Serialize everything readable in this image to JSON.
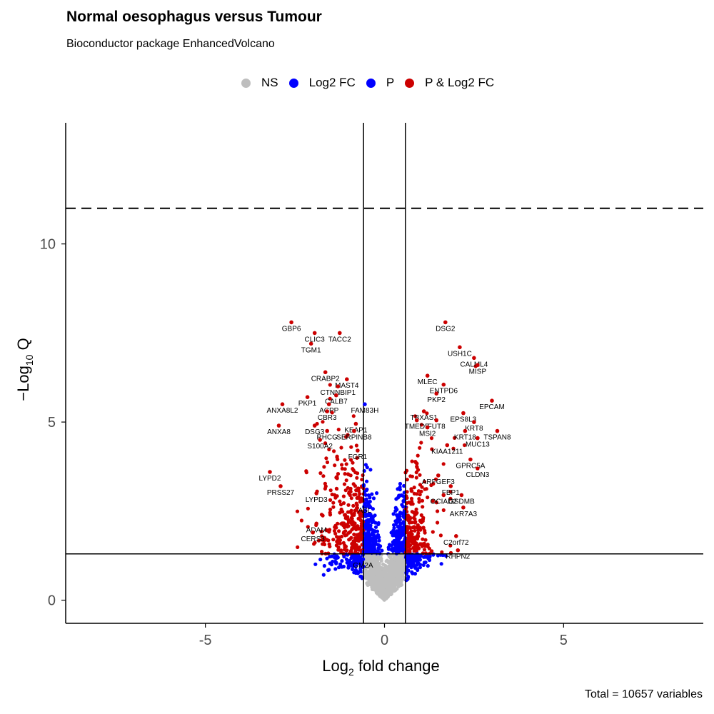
{
  "chart_data": {
    "type": "scatter",
    "title": "Normal oesophagus versus Tumour",
    "subtitle": "Bioconductor package EnhancedVolcano",
    "caption": "Total = 10657 variables",
    "xlabel_main": "Log",
    "xlabel_sub": "2",
    "xlabel_rest": " fold change",
    "ylabel_pre": "−Log",
    "ylabel_sub": "10",
    "ylabel_rest": " Q",
    "xlim": [
      -8.9,
      8.9
    ],
    "ylim": [
      -0.65,
      13.4
    ],
    "x_ticks": [
      -5,
      0,
      5
    ],
    "y_ticks": [
      0,
      5,
      10
    ],
    "x_tick_labels": [
      "-5",
      "0",
      "5"
    ],
    "y_tick_labels": [
      "0",
      "5",
      "10"
    ],
    "fc_cutoff": 0.585,
    "q_cutoff_line": 1.3,
    "dashed_line": 11.0,
    "legend_position": "top",
    "colors": {
      "ns": "#bebebe",
      "log2fc": "#0000ff",
      "p": "#0000ff",
      "both": "#cc0000"
    },
    "legend": [
      {
        "label": "NS",
        "color": "#bebebe"
      },
      {
        "label": "Log2 FC",
        "color": "#0000ff"
      },
      {
        "label": "P",
        "color": "#0000ff"
      },
      {
        "label": "P & Log2 FC",
        "color": "#cc0000"
      }
    ],
    "labeled_points": [
      {
        "label": "GBP6",
        "x": -2.6,
        "y": 7.8
      },
      {
        "label": "CLIC3",
        "x": -1.95,
        "y": 7.5
      },
      {
        "label": "TACC2",
        "x": -1.25,
        "y": 7.5
      },
      {
        "label": "TGM1",
        "x": -2.05,
        "y": 7.2
      },
      {
        "label": "CRABP2",
        "x": -1.65,
        "y": 6.4
      },
      {
        "label": "MAST4",
        "x": -1.05,
        "y": 6.2
      },
      {
        "label": "CTNNBIP1",
        "x": -1.3,
        "y": 6.0
      },
      {
        "label": "PKP1",
        "x": -2.15,
        "y": 5.7
      },
      {
        "label": "CALB7",
        "x": -1.35,
        "y": 5.75
      },
      {
        "label": "ANXA8L2",
        "x": -2.85,
        "y": 5.5
      },
      {
        "label": "ACPP",
        "x": -1.55,
        "y": 5.5
      },
      {
        "label": "FAM83H",
        "x": -0.55,
        "y": 5.5
      },
      {
        "label": "CBR3",
        "x": -1.6,
        "y": 5.3
      },
      {
        "label": "ANXA8",
        "x": -2.95,
        "y": 4.9
      },
      {
        "label": "DSG3",
        "x": -1.95,
        "y": 4.9
      },
      {
        "label": "KEAP1",
        "x": -0.8,
        "y": 4.95
      },
      {
        "label": "SERPINB8",
        "x": -0.85,
        "y": 4.75
      },
      {
        "label": "RHCG",
        "x": -1.6,
        "y": 4.75
      },
      {
        "label": "S100A2",
        "x": -1.8,
        "y": 4.5
      },
      {
        "label": "FGR1",
        "x": -0.75,
        "y": 4.2
      },
      {
        "label": "LYPD2",
        "x": -3.2,
        "y": 3.6
      },
      {
        "label": "PRSS27",
        "x": -2.9,
        "y": 3.2
      },
      {
        "label": "LYPD3",
        "x": -1.9,
        "y": 3.0
      },
      {
        "label": "ASL",
        "x": -0.55,
        "y": 2.7
      },
      {
        "label": "ADAM",
        "x": -1.9,
        "y": 2.15
      },
      {
        "label": "CERS3",
        "x": -2.0,
        "y": 1.9
      },
      {
        "label": "GM2A",
        "x": -0.6,
        "y": 1.15
      },
      {
        "label": "DSG2",
        "x": 1.7,
        "y": 7.8
      },
      {
        "label": "USH1C",
        "x": 2.1,
        "y": 7.1
      },
      {
        "label": "CALML4",
        "x": 2.5,
        "y": 6.8
      },
      {
        "label": "MISP",
        "x": 2.6,
        "y": 6.6
      },
      {
        "label": "MLEC",
        "x": 1.2,
        "y": 6.3
      },
      {
        "label": "ENTPD6",
        "x": 1.65,
        "y": 6.05
      },
      {
        "label": "PKP2",
        "x": 1.45,
        "y": 5.8
      },
      {
        "label": "EPCAM",
        "x": 3.0,
        "y": 5.6
      },
      {
        "label": "TBXAS1",
        "x": 1.1,
        "y": 5.3
      },
      {
        "label": "EPS8L3",
        "x": 2.2,
        "y": 5.25
      },
      {
        "label": "TMED5",
        "x": 0.9,
        "y": 5.05
      },
      {
        "label": "FUT8",
        "x": 1.45,
        "y": 5.05
      },
      {
        "label": "KRT8",
        "x": 2.5,
        "y": 5.0
      },
      {
        "label": "MSI2",
        "x": 1.2,
        "y": 4.85
      },
      {
        "label": "KRT18",
        "x": 2.25,
        "y": 4.75
      },
      {
        "label": "MUC13",
        "x": 2.6,
        "y": 4.55
      },
      {
        "label": "TSPAN8",
        "x": 3.15,
        "y": 4.75
      },
      {
        "label": "KIAA1211",
        "x": 1.75,
        "y": 4.35
      },
      {
        "label": "GPRC5A",
        "x": 2.4,
        "y": 3.95
      },
      {
        "label": "CLDN3",
        "x": 2.6,
        "y": 3.7
      },
      {
        "label": "ARFGEF3",
        "x": 1.5,
        "y": 3.5
      },
      {
        "label": "FBP1",
        "x": 1.85,
        "y": 3.2
      },
      {
        "label": "OCIAD2",
        "x": 1.65,
        "y": 2.95
      },
      {
        "label": "GSDMB",
        "x": 2.15,
        "y": 2.95
      },
      {
        "label": "AKR7A3",
        "x": 2.2,
        "y": 2.6
      },
      {
        "label": "C2orf72",
        "x": 2.0,
        "y": 1.8
      },
      {
        "label": "RHPN2",
        "x": 2.05,
        "y": 1.4
      }
    ]
  }
}
